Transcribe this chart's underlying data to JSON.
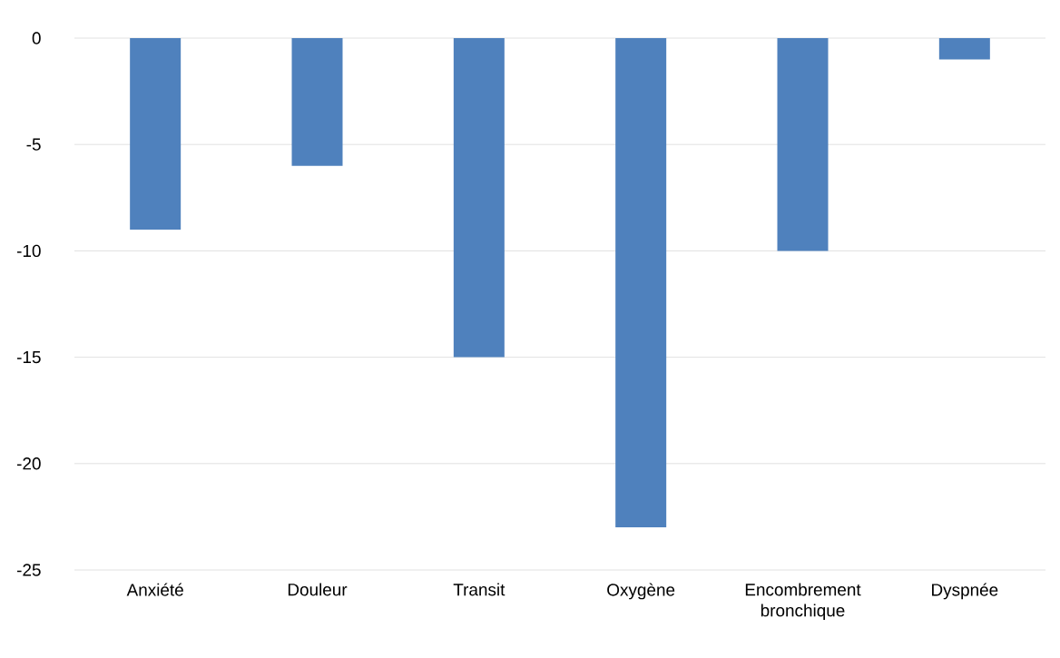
{
  "chart_data": {
    "type": "bar",
    "categories": [
      "Anxiété",
      "Douleur",
      "Transit",
      "Oxygène",
      "Encombrement bronchique",
      "Dyspnée"
    ],
    "values": [
      -9,
      -6,
      -15,
      -23,
      -10,
      -1
    ],
    "color": "#4f81bd",
    "ylim": [
      -25,
      0
    ],
    "yticks": [
      -25,
      -20,
      -15,
      -10,
      -5,
      0
    ],
    "grid": "y"
  }
}
